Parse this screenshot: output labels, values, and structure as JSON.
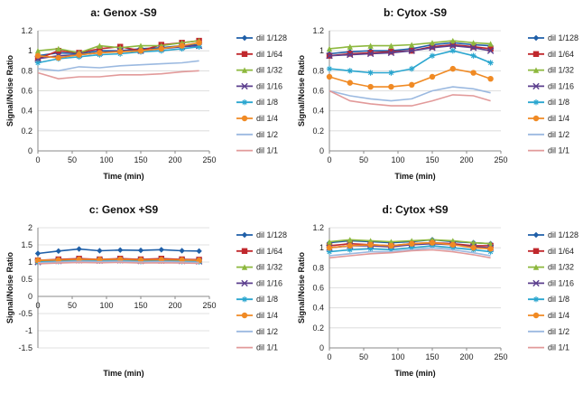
{
  "chart_data": [
    {
      "type": "line",
      "title": "a: Genox -S9",
      "xlabel": "Time (min)",
      "ylabel": "Signal/Noise Ratio",
      "xlim": [
        0,
        250
      ],
      "ylim": [
        0,
        1.2
      ],
      "xticks": [
        0,
        50,
        100,
        150,
        200,
        250
      ],
      "yticks": [
        0,
        0.2,
        0.4,
        0.6,
        0.8,
        1,
        1.2
      ],
      "legend": "right",
      "x": [
        0,
        30,
        60,
        90,
        120,
        150,
        180,
        210,
        235
      ],
      "series": [
        {
          "name": "dil 1/128",
          "color": "#1f5fa8",
          "marker": "diamond",
          "values": [
            0.95,
            0.98,
            0.97,
            1.0,
            1.0,
            1.02,
            1.03,
            1.05,
            1.06
          ]
        },
        {
          "name": "dil 1/64",
          "color": "#c0282d",
          "marker": "square",
          "values": [
            0.92,
            1.0,
            0.98,
            1.02,
            1.04,
            1.0,
            1.06,
            1.08,
            1.1
          ]
        },
        {
          "name": "dil 1/32",
          "color": "#8db83e",
          "marker": "triangle",
          "values": [
            1.0,
            1.02,
            0.98,
            1.05,
            1.03,
            1.05,
            1.05,
            1.08,
            1.1
          ]
        },
        {
          "name": "dil 1/16",
          "color": "#5c3f8e",
          "marker": "x",
          "values": [
            0.92,
            0.95,
            0.96,
            0.98,
            1.0,
            1.0,
            1.02,
            1.04,
            1.05
          ]
        },
        {
          "name": "dil 1/8",
          "color": "#2aa6cf",
          "marker": "star",
          "values": [
            0.88,
            0.92,
            0.94,
            0.96,
            0.97,
            0.99,
            1.0,
            1.02,
            1.04
          ]
        },
        {
          "name": "dil 1/4",
          "color": "#f08a24",
          "marker": "circle",
          "values": [
            0.95,
            0.93,
            0.96,
            0.98,
            0.99,
            1.0,
            1.02,
            1.05,
            1.08
          ]
        },
        {
          "name": "dil 1/2",
          "color": "#9bb9e0",
          "marker": "none",
          "values": [
            0.82,
            0.8,
            0.84,
            0.83,
            0.85,
            0.86,
            0.87,
            0.88,
            0.9
          ]
        },
        {
          "name": "dil 1/1",
          "color": "#e29a9a",
          "marker": "none",
          "values": [
            0.78,
            0.72,
            0.74,
            0.74,
            0.76,
            0.76,
            0.77,
            0.79,
            0.8
          ]
        }
      ]
    },
    {
      "type": "line",
      "title": "b: Cytox -S9",
      "xlabel": "Time (min)",
      "ylabel": "Signal/Noise Ratio",
      "xlim": [
        0,
        250
      ],
      "ylim": [
        0,
        1.2
      ],
      "xticks": [
        0,
        50,
        100,
        150,
        200,
        250
      ],
      "yticks": [
        0,
        0.2,
        0.4,
        0.6,
        0.8,
        1,
        1.2
      ],
      "legend": "right",
      "x": [
        0,
        30,
        60,
        90,
        120,
        150,
        180,
        210,
        235
      ],
      "series": [
        {
          "name": "dil 1/128",
          "color": "#1f5fa8",
          "marker": "diamond",
          "values": [
            0.97,
            0.99,
            1.0,
            1.0,
            1.02,
            1.06,
            1.08,
            1.06,
            1.05
          ]
        },
        {
          "name": "dil 1/64",
          "color": "#c0282d",
          "marker": "square",
          "values": [
            0.95,
            0.97,
            0.98,
            0.99,
            1.0,
            1.04,
            1.06,
            1.04,
            1.02
          ]
        },
        {
          "name": "dil 1/32",
          "color": "#8db83e",
          "marker": "triangle",
          "values": [
            1.02,
            1.04,
            1.05,
            1.05,
            1.06,
            1.08,
            1.1,
            1.08,
            1.07
          ]
        },
        {
          "name": "dil 1/16",
          "color": "#5c3f8e",
          "marker": "x",
          "values": [
            0.95,
            0.96,
            0.97,
            0.98,
            1.0,
            1.03,
            1.05,
            1.03,
            1.0
          ]
        },
        {
          "name": "dil 1/8",
          "color": "#2aa6cf",
          "marker": "star",
          "values": [
            0.82,
            0.8,
            0.78,
            0.78,
            0.82,
            0.95,
            1.0,
            0.95,
            0.88
          ]
        },
        {
          "name": "dil 1/4",
          "color": "#f08a24",
          "marker": "circle",
          "values": [
            0.74,
            0.68,
            0.64,
            0.64,
            0.66,
            0.74,
            0.82,
            0.78,
            0.72
          ]
        },
        {
          "name": "dil 1/2",
          "color": "#9bb9e0",
          "marker": "none",
          "values": [
            0.6,
            0.55,
            0.52,
            0.5,
            0.52,
            0.6,
            0.64,
            0.62,
            0.58
          ]
        },
        {
          "name": "dil 1/1",
          "color": "#e29a9a",
          "marker": "none",
          "values": [
            0.6,
            0.5,
            0.47,
            0.45,
            0.45,
            0.5,
            0.56,
            0.55,
            0.5
          ]
        }
      ]
    },
    {
      "type": "line",
      "title": "c: Genox +S9",
      "xlabel": "Time (min)",
      "ylabel": "Signal/Noise Ratio",
      "xlim": [
        0,
        250
      ],
      "ylim": [
        -1.5,
        2
      ],
      "xticks": [
        0,
        50,
        100,
        150,
        200,
        250
      ],
      "yticks": [
        -1.5,
        -1,
        -0.5,
        0,
        0.5,
        1,
        1.5,
        2
      ],
      "legend": "right",
      "x": [
        0,
        30,
        60,
        90,
        120,
        150,
        180,
        210,
        235
      ],
      "series": [
        {
          "name": "dil 1/128",
          "color": "#1f5fa8",
          "marker": "diamond",
          "values": [
            1.25,
            1.32,
            1.38,
            1.33,
            1.35,
            1.34,
            1.36,
            1.33,
            1.32
          ]
        },
        {
          "name": "dil 1/64",
          "color": "#c0282d",
          "marker": "square",
          "values": [
            1.05,
            1.08,
            1.1,
            1.08,
            1.1,
            1.08,
            1.1,
            1.08,
            1.07
          ]
        },
        {
          "name": "dil 1/32",
          "color": "#8db83e",
          "marker": "triangle",
          "values": [
            1.02,
            1.05,
            1.06,
            1.05,
            1.06,
            1.04,
            1.06,
            1.05,
            1.04
          ]
        },
        {
          "name": "dil 1/16",
          "color": "#5c3f8e",
          "marker": "x",
          "values": [
            1.0,
            1.03,
            1.05,
            1.04,
            1.05,
            1.03,
            1.04,
            1.03,
            1.02
          ]
        },
        {
          "name": "dil 1/8",
          "color": "#2aa6cf",
          "marker": "star",
          "values": [
            1.0,
            1.02,
            1.04,
            1.03,
            1.04,
            1.02,
            1.03,
            1.02,
            1.01
          ]
        },
        {
          "name": "dil 1/4",
          "color": "#f08a24",
          "marker": "circle",
          "values": [
            1.05,
            1.06,
            1.08,
            1.07,
            1.08,
            1.06,
            1.07,
            1.06,
            1.05
          ]
        },
        {
          "name": "dil 1/2",
          "color": "#9bb9e0",
          "marker": "none",
          "values": [
            0.98,
            1.0,
            1.02,
            1.01,
            1.02,
            1.0,
            1.01,
            1.0,
            0.99
          ]
        },
        {
          "name": "dil 1/1",
          "color": "#e29a9a",
          "marker": "none",
          "values": [
            0.95,
            0.97,
            0.99,
            0.98,
            0.99,
            0.97,
            0.98,
            0.97,
            0.96
          ]
        }
      ]
    },
    {
      "type": "line",
      "title": "d: Cytox +S9",
      "xlabel": "Time (min)",
      "ylabel": "Signal/Noise Ratio",
      "xlim": [
        0,
        250
      ],
      "ylim": [
        0,
        1.2
      ],
      "xticks": [
        0,
        50,
        100,
        150,
        200,
        250
      ],
      "yticks": [
        0,
        0.2,
        0.4,
        0.6,
        0.8,
        1,
        1.2
      ],
      "legend": "right",
      "x": [
        0,
        30,
        60,
        90,
        120,
        150,
        180,
        210,
        235
      ],
      "series": [
        {
          "name": "dil 1/128",
          "color": "#1f5fa8",
          "marker": "diamond",
          "values": [
            1.05,
            1.07,
            1.06,
            1.05,
            1.06,
            1.08,
            1.06,
            1.05,
            1.04
          ]
        },
        {
          "name": "dil 1/64",
          "color": "#c0282d",
          "marker": "square",
          "values": [
            1.02,
            1.04,
            1.03,
            1.02,
            1.04,
            1.05,
            1.04,
            1.02,
            1.02
          ]
        },
        {
          "name": "dil 1/32",
          "color": "#8db83e",
          "marker": "triangle",
          "values": [
            1.06,
            1.08,
            1.07,
            1.06,
            1.07,
            1.08,
            1.07,
            1.05,
            1.04
          ]
        },
        {
          "name": "dil 1/16",
          "color": "#5c3f8e",
          "marker": "x",
          "values": [
            1.0,
            1.02,
            1.02,
            1.01,
            1.03,
            1.04,
            1.03,
            1.01,
            1.0
          ]
        },
        {
          "name": "dil 1/8",
          "color": "#2aa6cf",
          "marker": "star",
          "values": [
            0.96,
            0.98,
            0.99,
            0.98,
            1.0,
            1.02,
            1.0,
            0.98,
            0.96
          ]
        },
        {
          "name": "dil 1/4",
          "color": "#f08a24",
          "marker": "circle",
          "values": [
            1.0,
            1.02,
            1.03,
            1.02,
            1.04,
            1.05,
            1.03,
            1.0,
            0.99
          ]
        },
        {
          "name": "dil 1/2",
          "color": "#9bb9e0",
          "marker": "none",
          "values": [
            0.92,
            0.94,
            0.96,
            0.96,
            0.98,
            1.0,
            0.98,
            0.95,
            0.92
          ]
        },
        {
          "name": "dil 1/1",
          "color": "#e29a9a",
          "marker": "none",
          "values": [
            0.9,
            0.92,
            0.94,
            0.95,
            0.97,
            0.98,
            0.96,
            0.93,
            0.9
          ]
        }
      ]
    }
  ]
}
